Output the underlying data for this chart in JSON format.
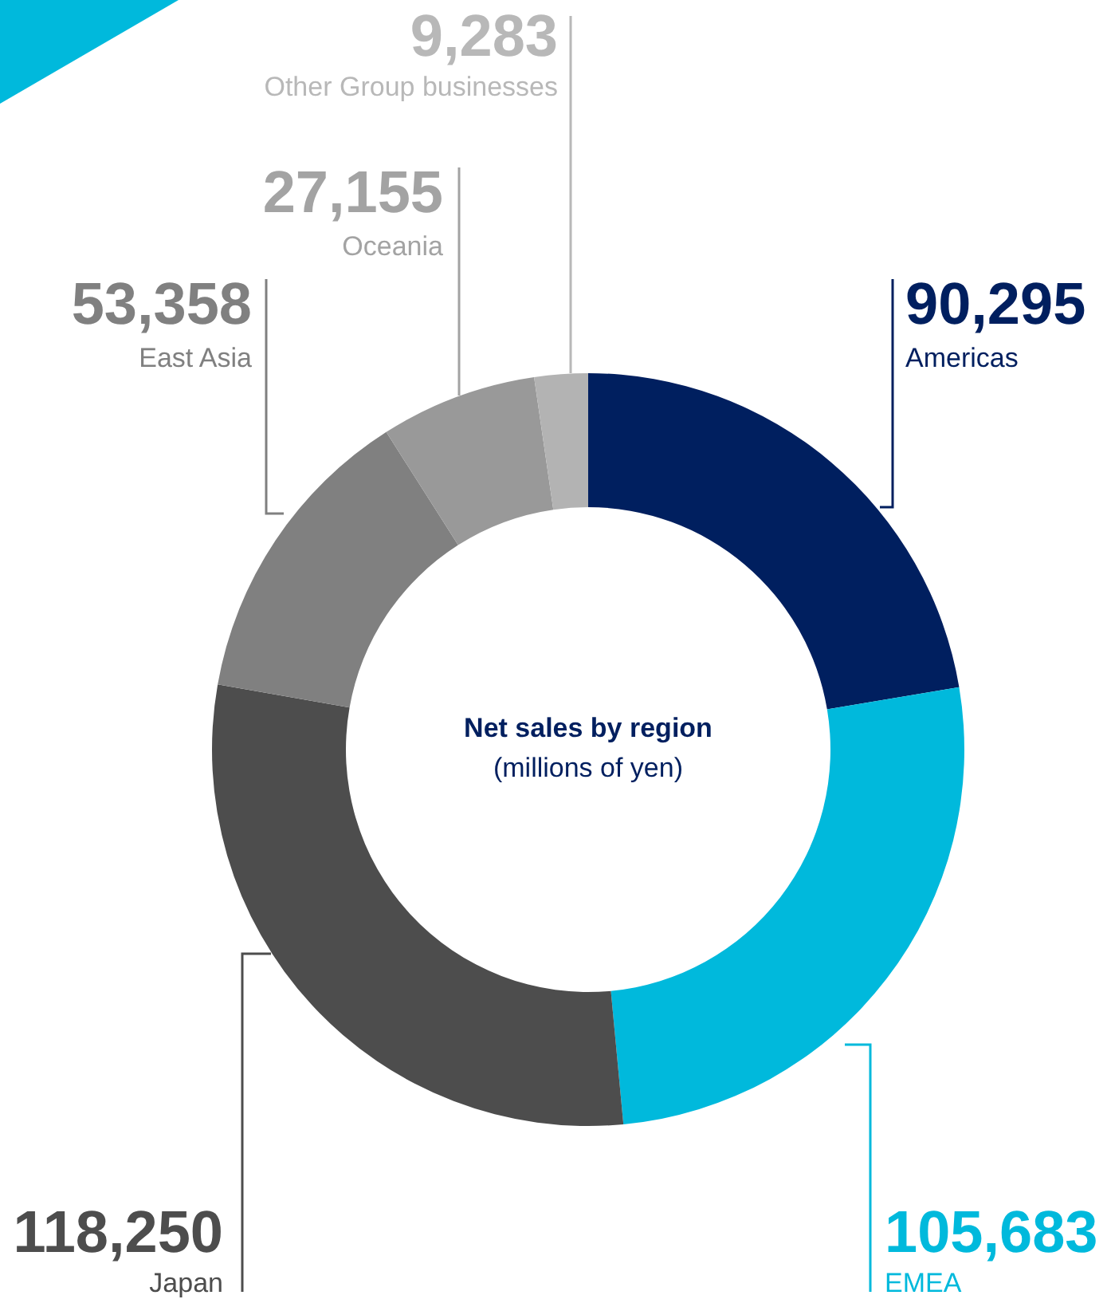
{
  "chart_data": {
    "type": "donut",
    "title": "Net sales by region",
    "subtitle": "(millions of yen)",
    "categories": [
      "Americas",
      "EMEA",
      "Japan",
      "East Asia",
      "Oceania",
      "Other Group businesses"
    ],
    "values": [
      90295,
      105683,
      118250,
      53358,
      27155,
      9283
    ],
    "colors": [
      "#001f5f",
      "#00b9dc",
      "#4d4d4d",
      "#808080",
      "#999999",
      "#b3b3b3"
    ],
    "value_labels": [
      "90,295",
      "105,683",
      "118,250",
      "53,358",
      "27,155",
      "9,283"
    ]
  }
}
